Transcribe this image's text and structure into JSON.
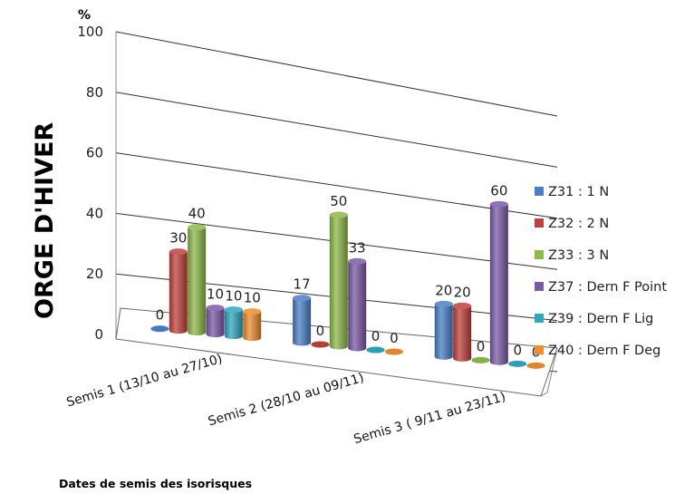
{
  "chart_data": {
    "type": "bar",
    "style": "3d-cylinder",
    "ylabel": "ORGE D'HIVER",
    "y_unit": "%",
    "xlabel": "Dates de semis des isorisques",
    "ylim": [
      0,
      100
    ],
    "yticks": [
      0,
      20,
      40,
      60,
      80,
      100
    ],
    "grid": true,
    "legend_position": "right",
    "categories": [
      "Semis 1 (13/10 au 27/10)",
      "Semis 2 (28/10 au 09/11)",
      "Semis 3 ( 9/11 au 23/11)"
    ],
    "series": [
      {
        "name": "Z31 : 1 N",
        "color": "#4a7fc7",
        "values": [
          0,
          17,
          20
        ]
      },
      {
        "name": "Z32 : 2 N",
        "color": "#c0413c",
        "values": [
          30,
          0,
          20
        ]
      },
      {
        "name": "Z33 : 3 N",
        "color": "#8db84a",
        "values": [
          40,
          50,
          0
        ]
      },
      {
        "name": "Z37 : Dern F Point",
        "color": "#7b5aa6",
        "values": [
          10,
          33,
          60
        ]
      },
      {
        "name": "Z39 : Dern F Lig",
        "color": "#2fa6c2",
        "values": [
          10,
          0,
          0
        ]
      },
      {
        "name": "Z40 : Dern F Deg",
        "color": "#ef8c2e",
        "values": [
          10,
          0,
          0
        ]
      }
    ]
  }
}
